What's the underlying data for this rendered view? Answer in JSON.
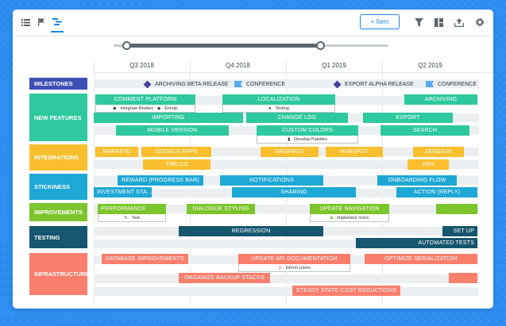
{
  "toolbar": {
    "add_item_label": "+ Item"
  },
  "quarters": [
    "Q3 2018",
    "Q4 2018",
    "Q1 2019",
    "Q2 2019"
  ],
  "lanes": {
    "milestones": "MILESTONES",
    "new_features": "NEW FEATURES",
    "integrations": "INTEGRATIONS",
    "stickiness": "STICKINESS",
    "improvements": "IMPROVEMENTS",
    "testing": "TESTING",
    "infrastructure": "INFRASTRUCTURE"
  },
  "milestones": [
    "ARCHIVING BETA RELEASE",
    "CONFERENCE",
    "EXPORT ALPHA RELEASE",
    "CONFERENCE"
  ],
  "new_features": {
    "comment_platform": "COMMENT PLATFORM",
    "integrate_replies": "Integrate Replies",
    "emojis": "Emojis",
    "localization": "LOCALIZATION",
    "testing_sub": "Testing",
    "archiving": "ARCHIVING",
    "importing": "IMPORTING",
    "change_log": "CHANGE LOG",
    "export": "EXPORT",
    "mobile_version": "MOBILE VERSION",
    "custom_colors": "CUSTOM COLORS",
    "search": "SEARCH",
    "develop_palettes": "Develop Palettes"
  },
  "integrations": {
    "marketo": "MARKETO",
    "google_apps": "GOOGLE APPS",
    "dropbox": "DROPBOX",
    "hubspot": "HUBSPOT",
    "zendesk": "ZENDESK",
    "trello": "TRELLO",
    "jira": "JIRA"
  },
  "stickiness": {
    "reward": "REWARD (PROGRESS BAR)",
    "notifications": "NOTIFICATIONS",
    "onboarding": "ONBOARDING FLOW",
    "investment": "INVESTMENT STA...",
    "sharing": "SHARING",
    "action_reply": "ACTION (REPLY)"
  },
  "improvements": {
    "performance": "PERFORMANCE",
    "test_sub": "Test",
    "dialogue": "DIALOGUE STYLING",
    "update_nav": "UPDATE NAVIGATION",
    "implement_icons": "Implement Icons"
  },
  "testing": {
    "regression": "REGRESSION",
    "set_up": "SET UP",
    "automated": "AUTOMATED TESTS"
  },
  "infrastructure": {
    "db_improvements": "DATABASE IMPROVEMENTS",
    "api_docs": "UPDATE API DOCUMENTATION",
    "inform_users": "Inform Users",
    "optimize": "OPTIMIZE SERIALIZATION",
    "backup": "ORGANIZE BACKUP STACKS",
    "steady_state": "STEADY STATE COST REDUCTIONS"
  },
  "colors": {
    "milestones": "#3f51b5",
    "new_features": "#2ec99e",
    "integrations": "#f9bf2e",
    "stickiness": "#1ea8d5",
    "improvements": "#7cc52c",
    "testing": "#16566f",
    "infrastructure": "#fa7e6c"
  }
}
